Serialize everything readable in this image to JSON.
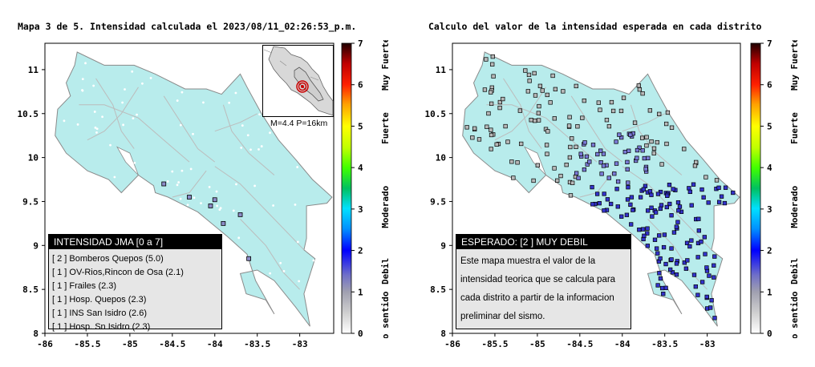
{
  "left_panel": {
    "title": "Mapa 3 de 5. Intensidad calculada el 2023/08/11_02:26:53_p.m.",
    "legend": {
      "header": "INTENSIDAD JMA [0 a 7]",
      "rows": [
        {
          "code": "[ 2 ]",
          "name": "Bomberos Quepos (5.0)"
        },
        {
          "code": "[ 1 ]",
          "name": "OV-Rios,Rincon de Osa (2.1)"
        },
        {
          "code": "[ 1 ]",
          "name": "Frailes (2.3)"
        },
        {
          "code": "[ 1 ]",
          "name": "Hosp. Quepos (2.3)"
        },
        {
          "code": "[ 1 ]",
          "name": "INS San Isidro (2.6)"
        },
        {
          "code": "[ 1 ]",
          "name": "Hosp. Sn Isidro (2.3)"
        }
      ]
    },
    "inset_caption": "M=4.4 P=16km"
  },
  "right_panel": {
    "title": "Calculo del valor de la intensidad esperada en cada distrito",
    "legend": {
      "header": "ESPERADO: [2 ] MUY DEBIL",
      "text": "Este mapa muestra el valor de la intensidad teorica que se calcula para cada distrito a partir de la informacion preliminar del sismo."
    }
  },
  "axes": {
    "x_ticks": [
      "-86",
      "-85.5",
      "-85",
      "-84.5",
      "-84",
      "-83.5",
      "-83"
    ],
    "y_ticks": [
      "11",
      "10.5",
      "10",
      "9.5",
      "9",
      "8.5",
      "8"
    ]
  },
  "colorbar": {
    "ticks": [
      "0",
      "1",
      "2",
      "3",
      "4",
      "5",
      "6",
      "7"
    ],
    "labels": [
      "No sentido",
      "Debil",
      "Moderado",
      "Fuerte",
      "Muy Fuerte"
    ]
  },
  "colors": {
    "land": "#b8ecec",
    "sea": "#ffffff",
    "rivers": "#bcbcbc",
    "district_low": "#b8b8b8",
    "district_weak": "#3333cc",
    "epicenter": "#cc0000"
  }
}
